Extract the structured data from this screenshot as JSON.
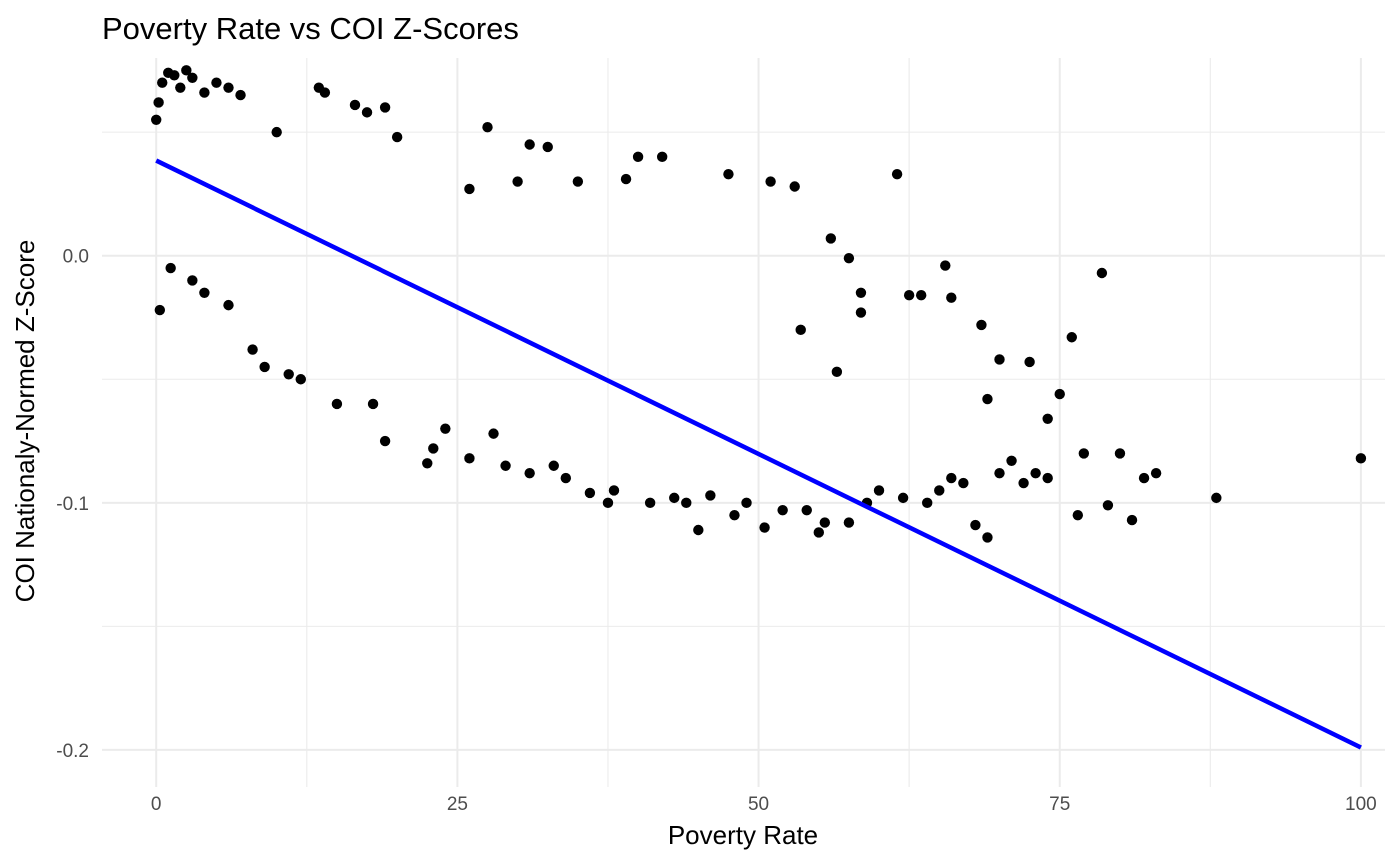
{
  "chart_data": {
    "type": "scatter",
    "title": "Poverty Rate vs COI Z-Scores",
    "xlabel": "Poverty Rate",
    "ylabel": "COI Nationaly-Normed Z-Score",
    "xlim": [
      -4.5,
      102
    ],
    "ylim": [
      -0.215,
      0.08
    ],
    "x_ticks": [
      0,
      25,
      50,
      75,
      100
    ],
    "x_tick_labels": [
      "0",
      "25",
      "50",
      "75",
      "100"
    ],
    "y_ticks": [
      0.0,
      -0.1,
      -0.2
    ],
    "y_tick_labels": [
      "0.0",
      "-0.1",
      "-0.2"
    ],
    "grid": true,
    "legend": "none",
    "point_color": "#000000",
    "fit_line_color": "#0000ff",
    "series": [
      {
        "kind": "points",
        "x": [
          0,
          0.2,
          0.5,
          1,
          1.5,
          2,
          2.5,
          3,
          4,
          5,
          6,
          7,
          13.5,
          16.5,
          17.5,
          19,
          27.5,
          31,
          32.5,
          40,
          47.5,
          51,
          53,
          56,
          61.5,
          75,
          76,
          78.5,
          82,
          83,
          88,
          100,
          45,
          22.5,
          33,
          37.5,
          43,
          48,
          52,
          55,
          57.5,
          59,
          60,
          62,
          64,
          65,
          66,
          67,
          68,
          69,
          70,
          71,
          72,
          73,
          74,
          76.5,
          77,
          79,
          80,
          81,
          66,
          70,
          74,
          65.5,
          63.5,
          62.5,
          56.5,
          57.5,
          58.5,
          53.5,
          58.5,
          68.5,
          69,
          72.5,
          9,
          11,
          15,
          19,
          23,
          26,
          29,
          34,
          38,
          41,
          44,
          46,
          49,
          50.5,
          54,
          55.5,
          26,
          30,
          35,
          39,
          42,
          31,
          36,
          8,
          12,
          18,
          24,
          28,
          20,
          14,
          10,
          6,
          4,
          3,
          1.2,
          0.3
        ],
        "y": [
          0.055,
          0.062,
          0.07,
          0.074,
          0.073,
          0.068,
          0.075,
          0.072,
          0.066,
          0.07,
          0.068,
          0.065,
          0.068,
          0.061,
          0.058,
          0.06,
          0.052,
          0.045,
          0.044,
          0.04,
          0.033,
          0.03,
          0.028,
          0.007,
          0.033,
          -0.056,
          -0.033,
          -0.007,
          -0.09,
          -0.088,
          -0.098,
          -0.082,
          -0.111,
          -0.084,
          -0.085,
          -0.1,
          -0.098,
          -0.105,
          -0.103,
          -0.112,
          -0.108,
          -0.1,
          -0.095,
          -0.098,
          -0.1,
          -0.095,
          -0.09,
          -0.092,
          -0.109,
          -0.114,
          -0.088,
          -0.083,
          -0.092,
          -0.088,
          -0.09,
          -0.105,
          -0.08,
          -0.101,
          -0.08,
          -0.107,
          -0.017,
          -0.042,
          -0.066,
          -0.004,
          -0.016,
          -0.016,
          -0.047,
          -0.001,
          -0.015,
          -0.03,
          -0.023,
          -0.028,
          -0.058,
          -0.043,
          -0.045,
          -0.048,
          -0.06,
          -0.075,
          -0.078,
          -0.082,
          -0.085,
          -0.09,
          -0.095,
          -0.1,
          -0.1,
          -0.097,
          -0.1,
          -0.11,
          -0.103,
          -0.108,
          0.027,
          0.03,
          0.03,
          0.031,
          0.04,
          -0.088,
          -0.096,
          -0.038,
          -0.05,
          -0.06,
          -0.07,
          -0.072,
          0.048,
          0.066,
          0.05,
          -0.02,
          -0.015,
          -0.01,
          -0.005,
          -0.022
        ]
      },
      {
        "kind": "fit_line",
        "x": [
          0,
          100
        ],
        "y": [
          0.0385,
          -0.199
        ]
      }
    ]
  }
}
